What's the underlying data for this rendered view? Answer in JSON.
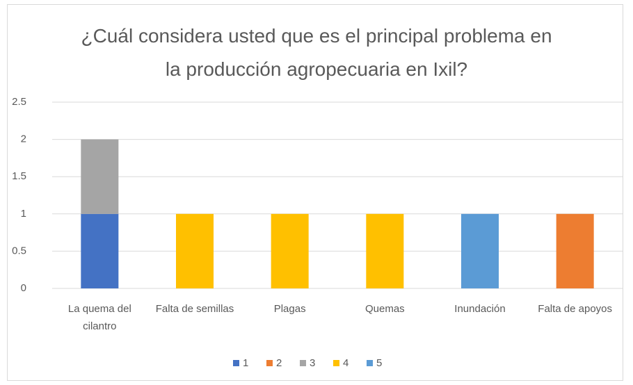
{
  "chart_data": {
    "type": "stacked_bar",
    "title": "¿Cuál considera usted que es el principal problema en la producción agropecuaria en Ixil?",
    "categories": [
      "La quema del cilantro",
      "Falta de semillas",
      "Plagas",
      "Quemas",
      "Inundación",
      "Falta de apoyos"
    ],
    "series": [
      {
        "name": "1",
        "color": "#4472c4",
        "values": [
          1,
          0,
          0,
          0,
          0,
          0
        ]
      },
      {
        "name": "2",
        "color": "#ed7d31",
        "values": [
          0,
          0,
          0,
          0,
          0,
          1
        ]
      },
      {
        "name": "3",
        "color": "#a5a5a5",
        "values": [
          1,
          0,
          0,
          0,
          0,
          0
        ]
      },
      {
        "name": "4",
        "color": "#ffc000",
        "values": [
          0,
          1,
          1,
          1,
          0,
          0
        ]
      },
      {
        "name": "5",
        "color": "#5b9bd5",
        "values": [
          0,
          0,
          0,
          0,
          1,
          0
        ]
      }
    ],
    "ylim": [
      0,
      2.5
    ],
    "yticks": [
      0,
      0.5,
      1,
      1.5,
      2,
      2.5
    ],
    "grid": true,
    "legend": "bottom"
  }
}
